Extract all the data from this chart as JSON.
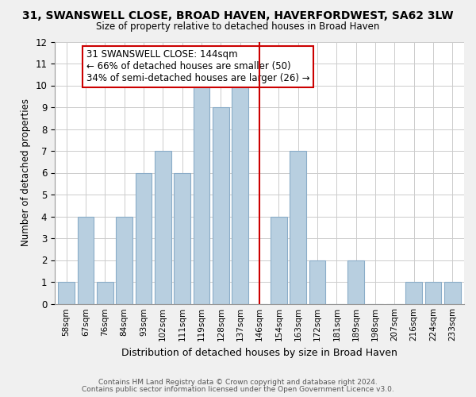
{
  "title": "31, SWANSWELL CLOSE, BROAD HAVEN, HAVERFORDWEST, SA62 3LW",
  "subtitle": "Size of property relative to detached houses in Broad Haven",
  "xlabel": "Distribution of detached houses by size in Broad Haven",
  "ylabel": "Number of detached properties",
  "bar_color": "#b8cfe0",
  "bar_edge_color": "#8aacc8",
  "bin_labels": [
    "58sqm",
    "67sqm",
    "76sqm",
    "84sqm",
    "93sqm",
    "102sqm",
    "111sqm",
    "119sqm",
    "128sqm",
    "137sqm",
    "146sqm",
    "154sqm",
    "163sqm",
    "172sqm",
    "181sqm",
    "189sqm",
    "198sqm",
    "207sqm",
    "216sqm",
    "224sqm",
    "233sqm"
  ],
  "counts": [
    1,
    4,
    1,
    4,
    6,
    7,
    6,
    10,
    9,
    10,
    0,
    4,
    7,
    2,
    0,
    2,
    0,
    0,
    1,
    1,
    1
  ],
  "ylim": [
    0,
    12
  ],
  "yticks": [
    0,
    1,
    2,
    3,
    4,
    5,
    6,
    7,
    8,
    9,
    10,
    11,
    12
  ],
  "property_line_bin_index": 10,
  "property_line_color": "#cc0000",
  "annotation_line1": "31 SWANSWELL CLOSE: 144sqm",
  "annotation_line2": "← 66% of detached houses are smaller (50)",
  "annotation_line3": "34% of semi-detached houses are larger (26) →",
  "annotation_box_color": "#ffffff",
  "annotation_box_edge": "#cc0000",
  "footer1": "Contains HM Land Registry data © Crown copyright and database right 2024.",
  "footer2": "Contains public sector information licensed under the Open Government Licence v3.0.",
  "background_color": "#f0f0f0",
  "plot_background_color": "#ffffff",
  "grid_color": "#cccccc"
}
